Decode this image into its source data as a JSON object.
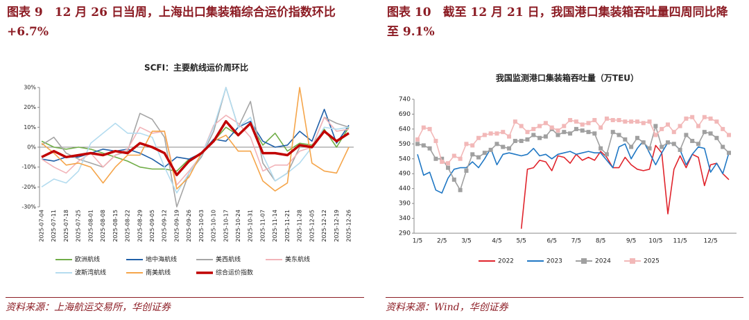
{
  "panels": [
    {
      "heading": "图表 9　12 月 26 日当周，上海出口集装箱综合运价指数环比+6.7%",
      "source": "资料来源：上海航运交易所，华创证券"
    },
    {
      "heading": "图表 10　截至 12 月 21 日，我国港口集装箱吞吐量四周同比降至 9.1%",
      "source": "资料来源：Wind，华创证券"
    }
  ],
  "chart_data": [
    {
      "type": "line",
      "title": "SCFI：主要航线运价周环比",
      "legend": "bottom",
      "grid": false,
      "categories": [
        "2025-07-04",
        "2025-07-11",
        "2025-07-18",
        "2025-07-25",
        "2025-08-01",
        "2025-08-08",
        "2025-08-15",
        "2025-08-22",
        "2025-08-29",
        "2025-09-05",
        "2025-09-12",
        "2025-09-19",
        "2025-09-26",
        "2025-10-03",
        "2025-10-10",
        "2025-10-17",
        "2025-10-24",
        "2025-10-31",
        "2025-11-07",
        "2025-11-14",
        "2025-11-21",
        "2025-11-28",
        "2025-12-05",
        "2025-12-12",
        "2025-12-19",
        "2025-12-26"
      ],
      "ylim": [
        -30,
        30
      ],
      "yticks": [
        {
          "value": -30,
          "label": "-30%"
        },
        {
          "value": -20,
          "label": "-20%"
        },
        {
          "value": -10,
          "label": "-10%"
        },
        {
          "value": 0,
          "label": "0%"
        },
        {
          "value": 10,
          "label": "10%"
        },
        {
          "value": 20,
          "label": "20%"
        },
        {
          "value": 30,
          "label": "30%"
        }
      ],
      "series": [
        {
          "name": "欧洲航线",
          "color": "#70ad47",
          "values": [
            3,
            0,
            -1,
            0,
            -1,
            -3,
            -5,
            -7,
            -10,
            -11,
            -11,
            -12,
            -6,
            -3,
            3,
            10,
            6,
            12,
            1,
            7,
            -2,
            2,
            1,
            9,
            0,
            10
          ]
        },
        {
          "name": "地中海航线",
          "color": "#1f5fa8",
          "values": [
            -6,
            -7,
            -5,
            -5,
            -3,
            -1,
            -2,
            -1,
            -3,
            -6,
            -10,
            -5,
            -6,
            -3,
            4,
            3,
            10,
            13,
            3,
            0,
            1,
            8,
            3,
            19,
            2,
            11
          ]
        },
        {
          "name": "美西航线",
          "color": "#a5a5a5",
          "values": [
            1,
            5,
            -3,
            -6,
            -8,
            -10,
            -4,
            -2,
            17,
            14,
            5,
            -30,
            -13,
            -5,
            8,
            30,
            10,
            23,
            -8,
            -17,
            -13,
            0,
            0,
            15,
            12,
            10
          ]
        },
        {
          "name": "美东航线",
          "color": "#f2b3b8",
          "values": [
            -6,
            -10,
            -13,
            -7,
            -3,
            -10,
            -4,
            -1,
            10,
            7,
            8,
            -19,
            -12,
            -4,
            11,
            16,
            12,
            5,
            -12,
            -9,
            -9,
            -2,
            0,
            15,
            8,
            9
          ]
        },
        {
          "name": "波斯湾航线",
          "color": "#b4dcef",
          "values": [
            -20,
            -16,
            -18,
            -12,
            2,
            7,
            12,
            7,
            7,
            5,
            -10,
            -23,
            -13,
            -4,
            10,
            30,
            10,
            15,
            -4,
            -17,
            -13,
            -8,
            0,
            10,
            9,
            10
          ]
        },
        {
          "name": "南美航线",
          "color": "#f5a54a",
          "values": [
            2,
            -3,
            -9,
            -8,
            -10,
            -18,
            -10,
            -4,
            -4,
            8,
            8,
            -21,
            -15,
            -3,
            3,
            6,
            -2,
            -2,
            -17,
            -22,
            -18,
            30,
            -8,
            -12,
            -13,
            0
          ]
        },
        {
          "name": "综合运价指数",
          "color": "#c00000",
          "linewidth": 3.5,
          "values": [
            -5,
            -2,
            -5,
            -4,
            -3,
            -4,
            -2,
            -3,
            2,
            0,
            -3,
            -14,
            -7,
            -3,
            3,
            13,
            6,
            12,
            -3,
            -3,
            -4,
            1,
            0,
            8,
            3,
            7
          ]
        }
      ]
    },
    {
      "type": "line",
      "title": "我国监测港口集装箱吞吐量（万TEU）",
      "legend": "bottom",
      "grid": false,
      "categories": [
        "1/5",
        null,
        null,
        null,
        "2/5",
        null,
        null,
        null,
        "3/5",
        null,
        null,
        null,
        null,
        "4/5",
        null,
        null,
        null,
        "5/5",
        null,
        null,
        null,
        null,
        "6/5",
        null,
        null,
        null,
        "7/5",
        null,
        null,
        null,
        "8/5",
        null,
        null,
        null,
        null,
        "9/5",
        null,
        null,
        null,
        "10/5",
        null,
        null,
        null,
        "11/5",
        null,
        null,
        null,
        null,
        "12/5",
        null,
        null,
        null
      ],
      "ylim": [
        290,
        740
      ],
      "yticks": [
        290,
        340,
        390,
        440,
        490,
        540,
        590,
        640,
        690,
        740
      ],
      "series": [
        {
          "name": "2022",
          "color": "#e0232b",
          "values": [
            null,
            null,
            null,
            null,
            null,
            null,
            null,
            null,
            null,
            null,
            null,
            null,
            null,
            null,
            null,
            null,
            null,
            305,
            505,
            510,
            535,
            530,
            500,
            550,
            545,
            525,
            555,
            535,
            545,
            535,
            565,
            545,
            510,
            510,
            545,
            520,
            505,
            500,
            505,
            585,
            560,
            355,
            505,
            550,
            510,
            555,
            545,
            450,
            520,
            525,
            490,
            470
          ]
        },
        {
          "name": "2023",
          "color": "#1f77c4",
          "values": [
            555,
            485,
            495,
            435,
            425,
            475,
            505,
            510,
            510,
            530,
            510,
            540,
            575,
            520,
            555,
            560,
            555,
            550,
            555,
            575,
            550,
            555,
            540,
            555,
            560,
            565,
            555,
            560,
            565,
            560,
            560,
            535,
            510,
            580,
            590,
            540,
            575,
            600,
            560,
            520,
            560,
            595,
            590,
            570,
            520,
            555,
            580,
            575,
            495,
            525,
            490,
            560
          ]
        },
        {
          "name": "2024",
          "color": "#a0a0a0",
          "marker": "square",
          "values": [
            590,
            585,
            575,
            540,
            540,
            510,
            470,
            435,
            500,
            555,
            545,
            560,
            570,
            590,
            580,
            575,
            600,
            600,
            605,
            620,
            610,
            615,
            640,
            620,
            630,
            625,
            640,
            635,
            630,
            625,
            575,
            555,
            630,
            620,
            605,
            580,
            610,
            595,
            575,
            650,
            580,
            595,
            590,
            570,
            620,
            600,
            590,
            630,
            625,
            610,
            580,
            560
          ]
        },
        {
          "name": "2025",
          "color": "#f2b8b8",
          "marker": "square",
          "values": [
            605,
            645,
            640,
            600,
            530,
            525,
            550,
            540,
            590,
            585,
            610,
            620,
            625,
            625,
            630,
            615,
            665,
            650,
            630,
            640,
            650,
            660,
            645,
            635,
            650,
            670,
            665,
            655,
            660,
            670,
            645,
            675,
            670,
            670,
            665,
            665,
            665,
            660,
            665,
            620,
            640,
            655,
            630,
            650,
            675,
            680,
            650,
            680,
            675,
            665,
            640,
            620
          ]
        }
      ]
    }
  ]
}
